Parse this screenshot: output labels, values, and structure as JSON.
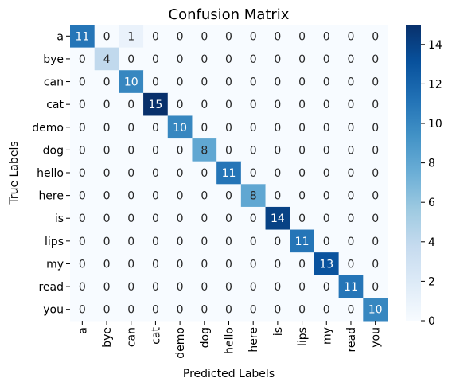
{
  "chart_data": {
    "type": "heatmap",
    "title": "Confusion Matrix",
    "xlabel": "Predicted Labels",
    "ylabel": "True Labels",
    "x_categories": [
      "a",
      "bye",
      "can",
      "cat",
      "demo",
      "dog",
      "hello",
      "here",
      "is",
      "lips",
      "my",
      "read",
      "you"
    ],
    "y_categories": [
      "a",
      "bye",
      "can",
      "cat",
      "demo",
      "dog",
      "hello",
      "here",
      "is",
      "lips",
      "my",
      "read",
      "you"
    ],
    "values": [
      [
        11,
        0,
        1,
        0,
        0,
        0,
        0,
        0,
        0,
        0,
        0,
        0,
        0
      ],
      [
        0,
        4,
        0,
        0,
        0,
        0,
        0,
        0,
        0,
        0,
        0,
        0,
        0
      ],
      [
        0,
        0,
        10,
        0,
        0,
        0,
        0,
        0,
        0,
        0,
        0,
        0,
        0
      ],
      [
        0,
        0,
        0,
        15,
        0,
        0,
        0,
        0,
        0,
        0,
        0,
        0,
        0
      ],
      [
        0,
        0,
        0,
        0,
        10,
        0,
        0,
        0,
        0,
        0,
        0,
        0,
        0
      ],
      [
        0,
        0,
        0,
        0,
        0,
        8,
        0,
        0,
        0,
        0,
        0,
        0,
        0
      ],
      [
        0,
        0,
        0,
        0,
        0,
        0,
        11,
        0,
        0,
        0,
        0,
        0,
        0
      ],
      [
        0,
        0,
        0,
        0,
        0,
        0,
        0,
        8,
        0,
        0,
        0,
        0,
        0
      ],
      [
        0,
        0,
        0,
        0,
        0,
        0,
        0,
        0,
        14,
        0,
        0,
        0,
        0
      ],
      [
        0,
        0,
        0,
        0,
        0,
        0,
        0,
        0,
        0,
        11,
        0,
        0,
        0
      ],
      [
        0,
        0,
        0,
        0,
        0,
        0,
        0,
        0,
        0,
        0,
        13,
        0,
        0
      ],
      [
        0,
        0,
        0,
        0,
        0,
        0,
        0,
        0,
        0,
        0,
        0,
        11,
        0
      ],
      [
        0,
        0,
        0,
        0,
        0,
        0,
        0,
        0,
        0,
        0,
        0,
        0,
        10
      ]
    ],
    "colormap": "Blues",
    "vmin": 0,
    "vmax": 15,
    "colorbar_ticks": [
      0,
      2,
      4,
      6,
      8,
      10,
      12,
      14
    ],
    "annotations": true
  }
}
